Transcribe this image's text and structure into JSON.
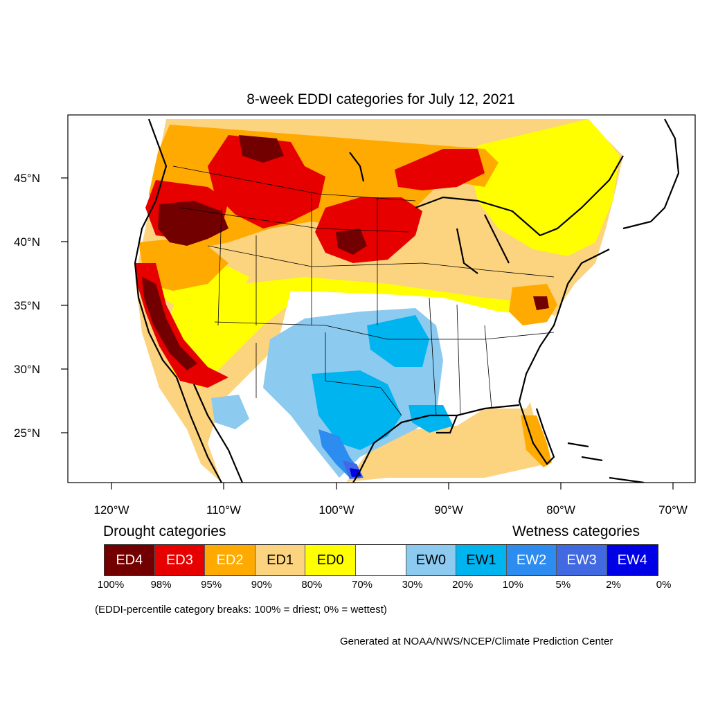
{
  "title": "8-week EDDI categories for July 12, 2021",
  "lat_labels": [
    "45°N",
    "40°N",
    "35°N",
    "30°N",
    "25°N"
  ],
  "lon_labels": [
    "120°W",
    "110°W",
    "100°W",
    "90°W",
    "80°W",
    "70°W"
  ],
  "legend": {
    "drought_heading": "Drought categories",
    "wetness_heading": "Wetness categories",
    "categories": [
      {
        "label": "ED4",
        "color": "#730000",
        "text_color": "#ffffff"
      },
      {
        "label": "ED3",
        "color": "#e60000",
        "text_color": "#ffffff"
      },
      {
        "label": "ED2",
        "color": "#ffaa00",
        "text_color": "#ffffff"
      },
      {
        "label": "ED1",
        "color": "#fcd37f",
        "text_color": "#000000"
      },
      {
        "label": "ED0",
        "color": "#ffff00",
        "text_color": "#000000"
      },
      {
        "label": "",
        "color": "#ffffff",
        "text_color": "#000000"
      },
      {
        "label": "EW0",
        "color": "#8ccaf0",
        "text_color": "#000000"
      },
      {
        "label": "EW1",
        "color": "#00b4f0",
        "text_color": "#000000"
      },
      {
        "label": "EW2",
        "color": "#2d8cf0",
        "text_color": "#ffffff"
      },
      {
        "label": "EW3",
        "color": "#4169e1",
        "text_color": "#ffffff"
      },
      {
        "label": "EW4",
        "color": "#0000e6",
        "text_color": "#ffffff"
      }
    ],
    "percent_breaks": [
      "100%",
      "98%",
      "95%",
      "90%",
      "80%",
      "70%",
      "30%",
      "20%",
      "10%",
      "5%",
      "2%",
      "0%"
    ]
  },
  "note": "(EDDI-percentile category breaks: 100% = driest; 0% = wettest)",
  "credit": "Generated at NOAA/NWS/NCEP/Climate Prediction Center"
}
